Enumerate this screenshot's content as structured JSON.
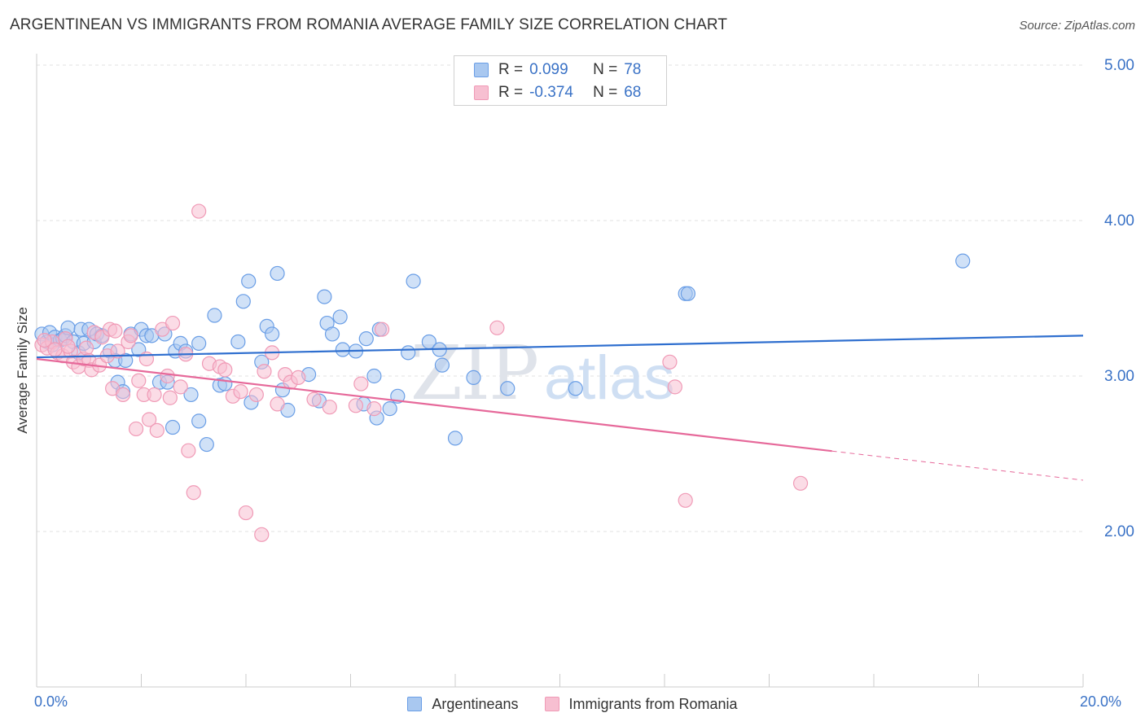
{
  "header": {
    "title": "ARGENTINEAN VS IMMIGRANTS FROM ROMANIA AVERAGE FAMILY SIZE CORRELATION CHART",
    "source": "Source: ZipAtlas.com"
  },
  "watermark": {
    "zip": "ZIP",
    "atlas": "atlas"
  },
  "stats": [
    {
      "r_label": "R =",
      "r_value": "0.099",
      "n_label": "N =",
      "n_value": "78",
      "color": "#6a9ee6"
    },
    {
      "r_label": "R =",
      "r_value": "-0.374",
      "n_label": "N =",
      "n_value": "68",
      "color": "#f09ab6"
    }
  ],
  "chart_data": {
    "type": "scatter",
    "ylabel": "Average Family Size",
    "x_tick_labels": [
      "0.0%",
      "20.0%"
    ],
    "y_tick_labels": [
      "2.00",
      "3.00",
      "4.00",
      "5.00"
    ],
    "xlim": [
      0.0,
      20.0
    ],
    "ylim": [
      1.0,
      5.0
    ],
    "grid": true,
    "legend_position": "bottom",
    "colors": {
      "argentineans_fill": "#a9c8f0",
      "argentineans_stroke": "#6a9ee6",
      "argentineans_line": "#2f6fcf",
      "romania_fill": "#f7bfd1",
      "romania_stroke": "#f09ab6",
      "romania_line": "#e6699a",
      "tick_label": "#3a72c6"
    },
    "series": [
      {
        "name": "Argentineans",
        "trend": {
          "x0": 0.0,
          "y0": 3.12,
          "x1": 20.0,
          "y1": 3.26,
          "dashed_from": null
        },
        "points": [
          [
            0.1,
            3.27
          ],
          [
            0.2,
            3.22
          ],
          [
            0.25,
            3.28
          ],
          [
            0.3,
            3.2
          ],
          [
            0.35,
            3.25
          ],
          [
            0.45,
            3.23
          ],
          [
            0.5,
            3.24
          ],
          [
            0.55,
            3.26
          ],
          [
            0.6,
            3.31
          ],
          [
            0.7,
            3.22
          ],
          [
            0.8,
            3.15
          ],
          [
            0.85,
            3.3
          ],
          [
            0.9,
            3.21
          ],
          [
            1.0,
            3.3
          ],
          [
            1.1,
            3.22
          ],
          [
            1.15,
            3.27
          ],
          [
            1.25,
            3.26
          ],
          [
            1.4,
            3.16
          ],
          [
            1.5,
            3.1
          ],
          [
            1.55,
            2.96
          ],
          [
            1.65,
            2.9
          ],
          [
            1.7,
            3.1
          ],
          [
            1.8,
            3.27
          ],
          [
            1.95,
            3.17
          ],
          [
            2.0,
            3.3
          ],
          [
            2.1,
            3.26
          ],
          [
            2.2,
            3.26
          ],
          [
            2.35,
            2.96
          ],
          [
            2.45,
            3.27
          ],
          [
            2.5,
            2.96
          ],
          [
            2.6,
            2.67
          ],
          [
            2.65,
            3.16
          ],
          [
            2.75,
            3.21
          ],
          [
            2.85,
            3.16
          ],
          [
            2.95,
            2.88
          ],
          [
            3.1,
            3.21
          ],
          [
            3.1,
            2.71
          ],
          [
            3.25,
            2.56
          ],
          [
            3.4,
            3.39
          ],
          [
            3.5,
            2.94
          ],
          [
            3.6,
            2.95
          ],
          [
            3.85,
            3.22
          ],
          [
            3.95,
            3.48
          ],
          [
            4.05,
            3.61
          ],
          [
            4.1,
            2.83
          ],
          [
            4.3,
            3.09
          ],
          [
            4.4,
            3.32
          ],
          [
            4.5,
            3.27
          ],
          [
            4.6,
            3.66
          ],
          [
            4.7,
            2.91
          ],
          [
            4.8,
            2.78
          ],
          [
            5.2,
            3.01
          ],
          [
            5.4,
            2.84
          ],
          [
            5.5,
            3.51
          ],
          [
            5.55,
            3.34
          ],
          [
            5.65,
            3.27
          ],
          [
            5.8,
            3.38
          ],
          [
            5.85,
            3.17
          ],
          [
            6.1,
            3.16
          ],
          [
            6.25,
            2.82
          ],
          [
            6.3,
            3.24
          ],
          [
            6.45,
            3.0
          ],
          [
            6.5,
            2.73
          ],
          [
            6.55,
            3.3
          ],
          [
            6.75,
            2.79
          ],
          [
            6.9,
            2.87
          ],
          [
            7.1,
            3.15
          ],
          [
            7.2,
            3.61
          ],
          [
            7.5,
            3.22
          ],
          [
            7.7,
            3.17
          ],
          [
            7.75,
            3.07
          ],
          [
            8.0,
            2.6
          ],
          [
            8.35,
            2.99
          ],
          [
            9.0,
            2.92
          ],
          [
            10.3,
            2.92
          ],
          [
            12.4,
            3.53
          ],
          [
            12.45,
            3.53
          ],
          [
            17.7,
            3.74
          ]
        ]
      },
      {
        "name": "Immigrants from Romania",
        "trend": {
          "x0": 0.0,
          "y0": 3.11,
          "x1": 20.0,
          "y1": 2.33,
          "dashed_from": 15.2
        },
        "points": [
          [
            0.1,
            3.2
          ],
          [
            0.2,
            3.18
          ],
          [
            0.3,
            3.22
          ],
          [
            0.4,
            3.15
          ],
          [
            0.5,
            3.13
          ],
          [
            0.55,
            3.24
          ],
          [
            0.65,
            3.16
          ],
          [
            0.7,
            3.09
          ],
          [
            0.8,
            3.06
          ],
          [
            0.9,
            3.11
          ],
          [
            0.95,
            3.18
          ],
          [
            1.0,
            3.1
          ],
          [
            1.05,
            3.04
          ],
          [
            1.1,
            3.28
          ],
          [
            1.2,
            3.07
          ],
          [
            1.25,
            3.25
          ],
          [
            1.35,
            3.13
          ],
          [
            1.4,
            3.3
          ],
          [
            1.45,
            2.92
          ],
          [
            1.5,
            3.29
          ],
          [
            1.55,
            3.16
          ],
          [
            1.65,
            2.88
          ],
          [
            1.75,
            3.22
          ],
          [
            1.8,
            3.26
          ],
          [
            1.9,
            2.66
          ],
          [
            1.95,
            2.97
          ],
          [
            2.05,
            2.88
          ],
          [
            2.1,
            3.11
          ],
          [
            2.15,
            2.72
          ],
          [
            2.25,
            2.88
          ],
          [
            2.3,
            2.65
          ],
          [
            2.4,
            3.3
          ],
          [
            2.5,
            3.0
          ],
          [
            2.55,
            2.86
          ],
          [
            2.6,
            3.34
          ],
          [
            2.75,
            2.93
          ],
          [
            2.85,
            3.14
          ],
          [
            2.9,
            2.52
          ],
          [
            3.0,
            2.25
          ],
          [
            3.1,
            4.06
          ],
          [
            3.3,
            3.08
          ],
          [
            3.5,
            3.06
          ],
          [
            3.6,
            3.04
          ],
          [
            3.75,
            2.87
          ],
          [
            3.9,
            2.9
          ],
          [
            4.0,
            2.12
          ],
          [
            4.2,
            2.88
          ],
          [
            4.3,
            1.98
          ],
          [
            4.35,
            3.03
          ],
          [
            4.5,
            3.15
          ],
          [
            4.6,
            2.82
          ],
          [
            4.75,
            3.01
          ],
          [
            4.85,
            2.96
          ],
          [
            5.0,
            2.99
          ],
          [
            5.3,
            2.85
          ],
          [
            5.6,
            2.8
          ],
          [
            6.1,
            2.81
          ],
          [
            6.2,
            2.95
          ],
          [
            6.45,
            2.79
          ],
          [
            6.6,
            3.3
          ],
          [
            8.8,
            3.31
          ],
          [
            12.1,
            3.09
          ],
          [
            12.2,
            2.93
          ],
          [
            12.4,
            2.2
          ],
          [
            14.6,
            2.31
          ],
          [
            0.15,
            3.23
          ],
          [
            0.35,
            3.17
          ],
          [
            0.6,
            3.19
          ]
        ]
      }
    ]
  }
}
